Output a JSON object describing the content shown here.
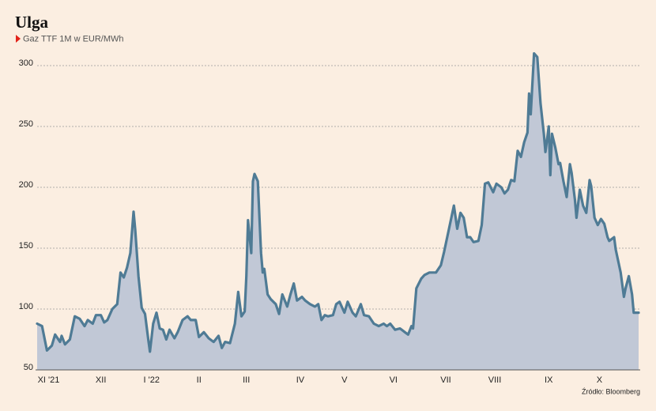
{
  "chart_data": {
    "type": "area",
    "title": "Ulga",
    "subtitle": "Gaz TTF 1M w EUR/MWh",
    "source": "Źródło: Bloomberg",
    "xlim": [
      0,
      368
    ],
    "xticks": [
      {
        "value": 7,
        "label": "XI '21"
      },
      {
        "value": 39,
        "label": "XII"
      },
      {
        "value": 70,
        "label": "I '22"
      },
      {
        "value": 99,
        "label": "II"
      },
      {
        "value": 128,
        "label": "III"
      },
      {
        "value": 161,
        "label": "IV"
      },
      {
        "value": 188,
        "label": "V"
      },
      {
        "value": 218,
        "label": "VI"
      },
      {
        "value": 250,
        "label": "VII"
      },
      {
        "value": 280,
        "label": "VIII"
      },
      {
        "value": 313,
        "label": "IX"
      },
      {
        "value": 344,
        "label": "X"
      }
    ],
    "ylim": [
      50,
      320
    ],
    "yticks": [
      50,
      100,
      150,
      200,
      250,
      300
    ],
    "grid": true,
    "line_color": "#4f7b95",
    "fill_color": "#c1c8d6",
    "x": [
      0,
      3,
      6,
      9,
      11,
      14,
      15,
      17,
      20,
      23,
      26,
      29,
      31,
      34,
      36,
      39,
      41,
      43,
      46,
      49,
      51,
      53,
      55,
      57,
      59,
      60,
      62,
      64,
      66,
      68,
      69,
      71,
      73,
      75,
      77,
      79,
      81,
      84,
      86,
      89,
      92,
      94,
      97,
      99,
      102,
      105,
      108,
      111,
      113,
      115,
      118,
      121,
      123,
      125,
      127,
      128,
      129,
      131,
      132,
      133,
      135,
      137,
      138,
      139,
      141,
      143,
      146,
      148,
      150,
      153,
      155,
      157,
      159,
      162,
      164,
      167,
      170,
      172,
      174,
      176,
      178,
      181,
      183,
      185,
      188,
      190,
      193,
      195,
      198,
      200,
      203,
      206,
      209,
      212,
      214,
      216,
      219,
      222,
      225,
      227,
      229,
      230,
      232,
      235,
      237,
      240,
      242,
      244,
      247,
      249,
      252,
      255,
      257,
      259,
      261,
      263,
      265,
      267,
      270,
      272,
      274,
      276,
      279,
      281,
      284,
      286,
      288,
      290,
      292,
      294,
      296,
      298,
      300,
      301,
      302,
      304,
      306,
      308,
      310,
      311,
      313,
      314,
      315,
      317,
      319,
      320,
      322,
      324,
      326,
      327,
      329,
      330,
      332,
      334,
      336,
      338,
      339,
      341,
      343,
      345,
      347,
      349,
      350,
      353,
      354,
      357,
      359,
      360,
      362,
      364,
      365,
      368
    ],
    "values": [
      88,
      86,
      66,
      70,
      79,
      73,
      78,
      71,
      75,
      94,
      92,
      86,
      91,
      88,
      95,
      95,
      89,
      91,
      100,
      104,
      130,
      126,
      134,
      146,
      180,
      165,
      127,
      101,
      96,
      75,
      65,
      88,
      97,
      84,
      83,
      75,
      83,
      76,
      81,
      91,
      94,
      91,
      91,
      77,
      81,
      76,
      73,
      78,
      68,
      73,
      72,
      88,
      114,
      94,
      98,
      127,
      173,
      146,
      205,
      211,
      205,
      146,
      130,
      133,
      112,
      108,
      104,
      96,
      112,
      102,
      112,
      121,
      107,
      110,
      107,
      104,
      102,
      104,
      91,
      95,
      94,
      95,
      104,
      106,
      97,
      106,
      97,
      94,
      104,
      95,
      94,
      88,
      86,
      88,
      86,
      88,
      83,
      84,
      81,
      79,
      86,
      84,
      117,
      125,
      128,
      130,
      130,
      130,
      136,
      147,
      166,
      185,
      166,
      179,
      175,
      159,
      159,
      155,
      156,
      169,
      203,
      204,
      196,
      203,
      200,
      195,
      198,
      206,
      205,
      230,
      225,
      237,
      245,
      277,
      260,
      310,
      307,
      269,
      244,
      229,
      250,
      210,
      244,
      233,
      219,
      220,
      205,
      192,
      219,
      212,
      190,
      175,
      198,
      185,
      179,
      206,
      201,
      175,
      169,
      174,
      170,
      159,
      156,
      159,
      149,
      130,
      110,
      117,
      127,
      112,
      97,
      97
    ]
  }
}
